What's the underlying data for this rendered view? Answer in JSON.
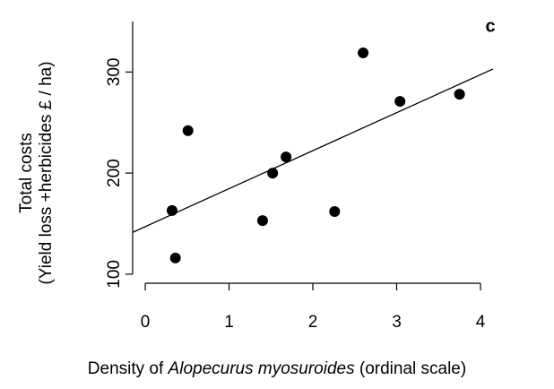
{
  "chart_data": {
    "type": "scatter",
    "panel_label": "c",
    "ylabel": [
      "Total costs",
      "(Yield loss +herbicides £ / ha)"
    ],
    "xlabel": [
      "Density of ",
      "Alopecurus myosuroides",
      " (ordinal scale)"
    ],
    "x": [
      0.32,
      0.36,
      0.51,
      1.4,
      1.52,
      1.68,
      2.26,
      2.6,
      3.04,
      3.75
    ],
    "values": [
      163,
      116,
      242,
      153,
      200,
      216,
      162,
      319,
      271,
      278
    ],
    "color": "#000000",
    "fit": {
      "intercept": 147,
      "slope": 37.6
    },
    "xlim": [
      -0.15,
      4.15
    ],
    "xticks": [
      0,
      1,
      2,
      3,
      4
    ],
    "ylim": [
      91,
      350
    ],
    "yticks": [
      100,
      200,
      300
    ]
  }
}
